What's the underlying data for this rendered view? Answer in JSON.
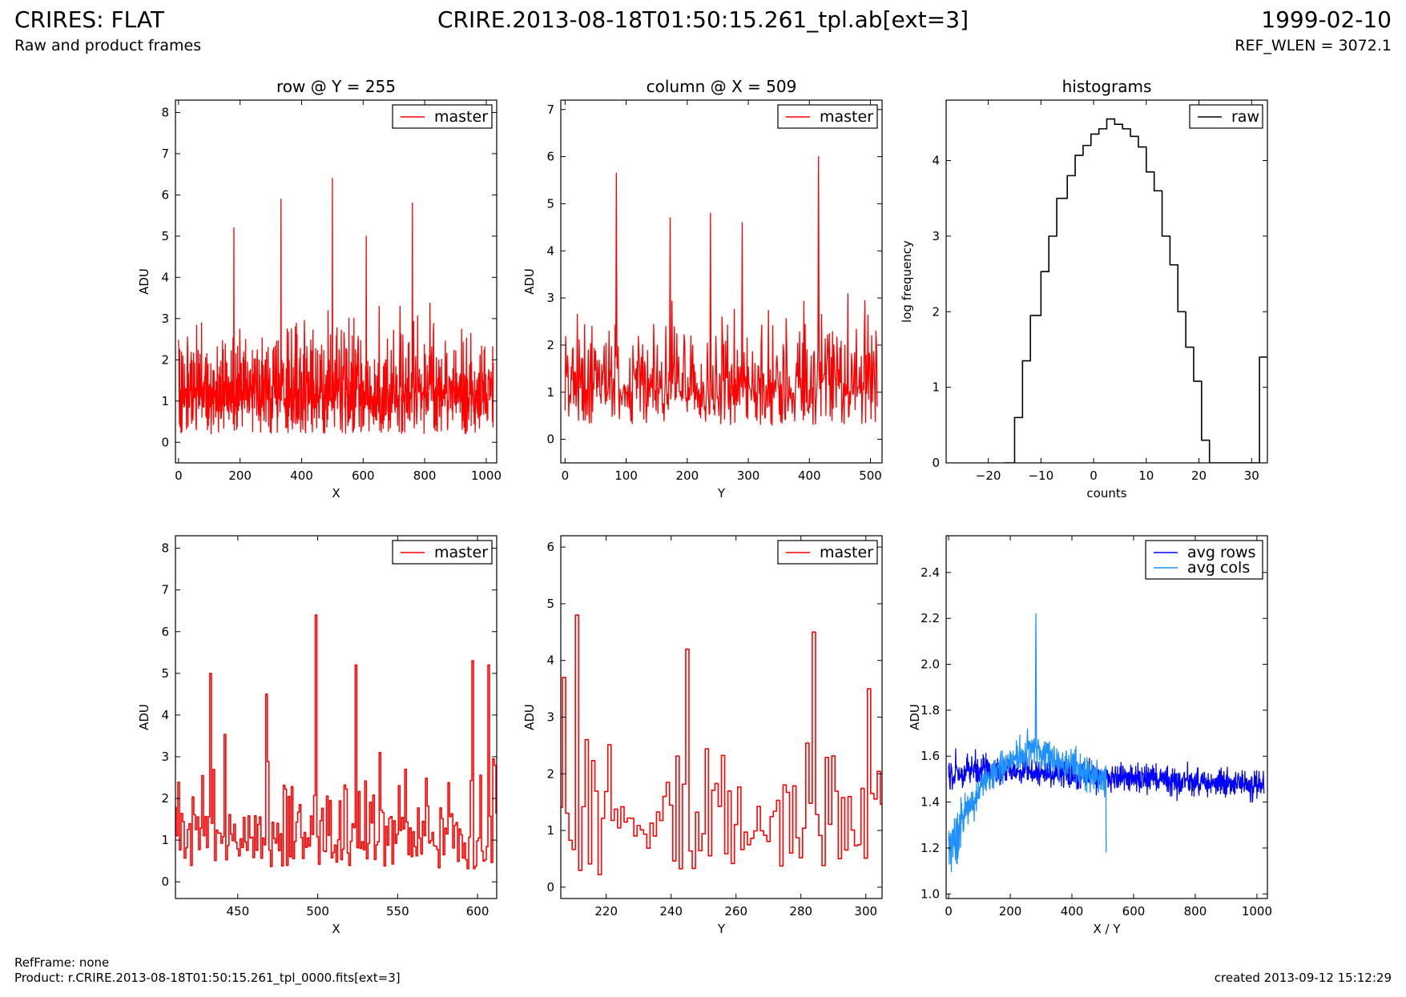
{
  "header": {
    "left_title": "CRIRES: FLAT",
    "left_subtitle": "Raw and product frames",
    "center_title": "CRIRE.2013-08-18T01:50:15.261_tpl.ab[ext=3]",
    "right_title": "1999-02-10",
    "right_subtitle": "REF_WLEN = 3072.1"
  },
  "footer": {
    "refframe": "RefFrame: none",
    "product": "Product: r.CRIRE.2013-08-18T01:50:15.261_tpl_0000.fits[ext=3]",
    "created": "created 2013-09-12 15:12:29"
  },
  "colors": {
    "master": "#ff0000",
    "raw": "#000000",
    "avg_rows": "#0000ff",
    "avg_cols": "#1e90ff"
  },
  "chart_data": [
    {
      "type": "line",
      "title": "row @ Y = 255",
      "xlabel": "X",
      "ylabel": "ADU",
      "xlim": [
        -10,
        1034
      ],
      "ylim": [
        -0.5,
        8.3
      ],
      "xticks": [
        0,
        200,
        400,
        600,
        800,
        1000
      ],
      "yticks": [
        0,
        1,
        2,
        3,
        4,
        5,
        6,
        7,
        8
      ],
      "legend": "top-right",
      "series": [
        {
          "name": "master",
          "color": "#ff0000",
          "n_points": 1024,
          "x_range": [
            0,
            1023
          ],
          "typical_range": [
            0.2,
            3.5
          ],
          "peaks": [
            [
              333,
              5.9
            ],
            [
              500,
              6.4
            ],
            [
              760,
              5.8
            ],
            [
              180,
              5.2
            ],
            [
              610,
              5.0
            ]
          ]
        }
      ]
    },
    {
      "type": "line",
      "title": "column @ X = 509",
      "xlabel": "Y",
      "ylabel": "ADU",
      "xlim": [
        -7,
        519
      ],
      "ylim": [
        -0.5,
        7.2
      ],
      "xticks": [
        0,
        100,
        200,
        300,
        400,
        500
      ],
      "yticks": [
        0,
        1,
        2,
        3,
        4,
        5,
        6,
        7
      ],
      "legend": "top-right",
      "series": [
        {
          "name": "master",
          "color": "#ff0000",
          "n_points": 512,
          "x_range": [
            0,
            511
          ],
          "typical_range": [
            0.3,
            3.5
          ],
          "peaks": [
            [
              84,
              5.65
            ],
            [
              415,
              6.0
            ],
            [
              172,
              4.7
            ],
            [
              238,
              4.8
            ],
            [
              290,
              4.6
            ]
          ]
        }
      ]
    },
    {
      "type": "step",
      "title": "histograms",
      "xlabel": "counts",
      "ylabel": "log frequency",
      "xlim": [
        -28,
        33
      ],
      "ylim": [
        0,
        4.8
      ],
      "xticks": [
        -20,
        -10,
        0,
        10,
        20,
        30
      ],
      "yticks": [
        0,
        1,
        2,
        3,
        4
      ],
      "legend": "top-right",
      "series": [
        {
          "name": "raw",
          "color": "#000000",
          "bins": [
            [
              -17,
              -15,
              0
            ],
            [
              -15,
              -13.5,
              0.6
            ],
            [
              -13.5,
              -12,
              1.35
            ],
            [
              -12,
              -10,
              1.95
            ],
            [
              -10,
              -8.5,
              2.53
            ],
            [
              -8.5,
              -7,
              3.0
            ],
            [
              -7,
              -5,
              3.5
            ],
            [
              -5,
              -3.5,
              3.8
            ],
            [
              -3.5,
              -2,
              4.07
            ],
            [
              -2,
              -0.5,
              4.2
            ],
            [
              -0.5,
              1,
              4.35
            ],
            [
              1,
              2.5,
              4.42
            ],
            [
              2.5,
              4,
              4.55
            ],
            [
              4,
              5.5,
              4.48
            ],
            [
              5.5,
              7,
              4.42
            ],
            [
              7,
              8.5,
              4.32
            ],
            [
              8.5,
              10,
              4.18
            ],
            [
              10,
              11.5,
              3.85
            ],
            [
              11.5,
              13,
              3.6
            ],
            [
              13,
              14.5,
              3.0
            ],
            [
              14.5,
              16,
              2.62
            ],
            [
              16,
              17.5,
              2.0
            ],
            [
              17.5,
              19,
              1.53
            ],
            [
              19,
              20.5,
              1.08
            ],
            [
              20.5,
              22,
              0.3
            ],
            [
              22,
              31.5,
              0
            ],
            [
              31.5,
              33,
              1.4
            ]
          ]
        }
      ]
    },
    {
      "type": "step",
      "xlabel": "X",
      "ylabel": "ADU",
      "xlim": [
        411,
        612
      ],
      "ylim": [
        -0.4,
        8.3
      ],
      "xticks": [
        450,
        500,
        550,
        600
      ],
      "yticks": [
        0,
        1,
        2,
        3,
        4,
        5,
        6,
        7,
        8
      ],
      "legend": "top-right",
      "series": [
        {
          "name": "master",
          "color": "#ff0000",
          "x_range": [
            411,
            612
          ],
          "typical_range": [
            0.3,
            4.0
          ],
          "peaks": [
            [
              499,
              6.4
            ],
            [
              433,
              5.0
            ],
            [
              524,
              5.2
            ],
            [
              597,
              5.3
            ],
            [
              607,
              5.2
            ],
            [
              468,
              4.5
            ]
          ]
        }
      ]
    },
    {
      "type": "step",
      "xlabel": "Y",
      "ylabel": "ADU",
      "xlim": [
        206,
        305
      ],
      "ylim": [
        -0.2,
        6.2
      ],
      "xticks": [
        220,
        240,
        260,
        280,
        300
      ],
      "yticks": [
        0,
        1,
        2,
        3,
        4,
        5,
        6
      ],
      "legend": "top-right",
      "series": [
        {
          "name": "master",
          "color": "#ff0000",
          "x_range": [
            206,
            305
          ],
          "typical_range": [
            0.2,
            3.7
          ],
          "peaks": [
            [
              211,
              4.8
            ],
            [
              245,
              4.2
            ],
            [
              284,
              4.5
            ],
            [
              207,
              3.7
            ],
            [
              301,
              3.5
            ]
          ]
        }
      ]
    },
    {
      "type": "line",
      "xlabel": "X / Y",
      "ylabel": "ADU",
      "xlim": [
        -8,
        1034
      ],
      "ylim": [
        0.98,
        2.56
      ],
      "xticks": [
        0,
        200,
        400,
        600,
        800,
        1000
      ],
      "yticks": [
        1.0,
        1.2,
        1.4,
        1.6,
        1.8,
        2.0,
        2.2,
        2.4
      ],
      "legend": "top-right",
      "series": [
        {
          "name": "avg rows",
          "color": "#0000ff",
          "n_points": 1024,
          "x_range": [
            0,
            1023
          ],
          "level": [
            1.55,
            1.47
          ],
          "noise": 0.07
        },
        {
          "name": "avg cols",
          "color": "#1e90ff",
          "n_points": 512,
          "x_range": [
            0,
            511
          ],
          "shape": "rises from 1.2 to ~1.65 at 280 (spike 2.22 at 283), then ~1.5, drop 1.18 at 511"
        }
      ]
    }
  ]
}
